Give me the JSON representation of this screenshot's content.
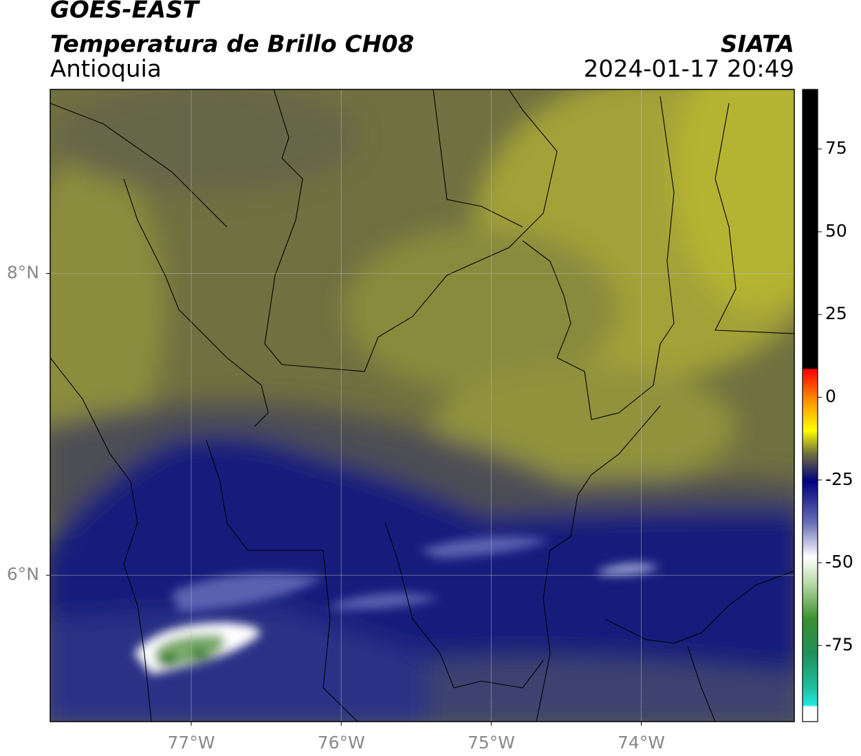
{
  "header": {
    "satellite": "GOES-EAST",
    "product": "Temperatura de Brillo CH08",
    "region": "Antioquia",
    "agency": "SIATA",
    "datetime": "2024-01-17 20:49"
  },
  "map": {
    "xlim": [
      -77.94,
      -72.98
    ],
    "ylim": [
      5.03,
      9.22
    ],
    "grid": true,
    "xticks": [
      {
        "value": -77,
        "label": "77°W"
      },
      {
        "value": -76,
        "label": "76°W"
      },
      {
        "value": -75,
        "label": "75°W"
      },
      {
        "value": -74,
        "label": "74°W"
      }
    ],
    "yticks": [
      {
        "value": 6,
        "label": "6°N"
      },
      {
        "value": 8,
        "label": "8°N"
      }
    ]
  },
  "colorbar": {
    "lim": [
      -98,
      93
    ],
    "ticks": [
      -75,
      -50,
      -25,
      0,
      25,
      50,
      75
    ]
  }
}
